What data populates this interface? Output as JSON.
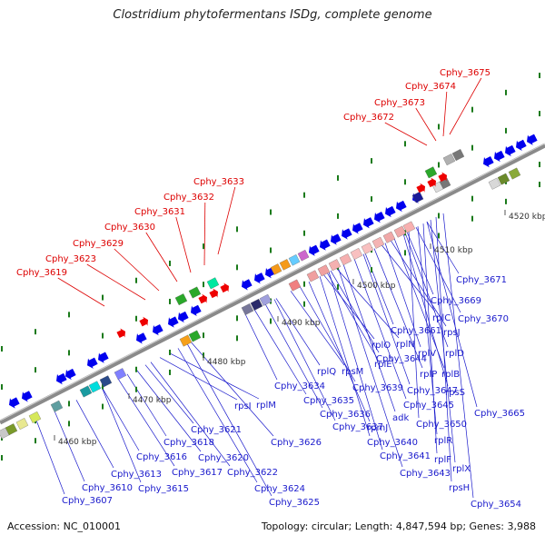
{
  "title": "Clostridium phytofermentans ISDg, complete genome",
  "accession": "Accession: NC_010001",
  "summary": "Topology: circular; Length: 4,847,594 bp; Genes: 3,988",
  "colors": {
    "backbone": "#888888",
    "highlight_label": "#dd0000",
    "gene_label": "#1a1acc",
    "forward_gene": "#0000ee",
    "highlight_gene": "#ee0000",
    "tick": "#1a7a1a",
    "scale_text": "#333333"
  },
  "scale_labels": [
    "4460 kbp",
    "4470 kbp",
    "4480 kbp",
    "4490 kbp",
    "4500 kbp",
    "4510 kbp",
    "4520 kbp"
  ],
  "highlight_labels": [
    "Cphy_3619",
    "Cphy_3623",
    "Cphy_3629",
    "Cphy_3630",
    "Cphy_3631",
    "Cphy_3632",
    "Cphy_3633",
    "Cphy_3672",
    "Cphy_3673",
    "Cphy_3674",
    "Cphy_3675"
  ],
  "gene_labels": [
    "Cphy_3607",
    "Cphy_3610",
    "Cphy_3613",
    "Cphy_3615",
    "Cphy_3616",
    "Cphy_3617",
    "Cphy_3618",
    "Cphy_3620",
    "Cphy_3621",
    "rpsI",
    "rplM",
    "Cphy_3622",
    "Cphy_3624",
    "Cphy_3625",
    "Cphy_3626",
    "Cphy_3634",
    "Cphy_3635",
    "Cphy_3636",
    "Cphy_3637",
    "rplQ",
    "rpsM",
    "Cphy_3639",
    "rpmJ",
    "Cphy_3640",
    "Cphy_3641",
    "Cphy_3643",
    "Cphy_3644",
    "rplE",
    "rplO",
    "adk",
    "rplN",
    "Cphy_3645",
    "Cphy_3647",
    "rplP",
    "Cphy_3661",
    "rplV",
    "rplB",
    "rpsS",
    "rplD",
    "rplC",
    "rpsJ",
    "Cphy_3669",
    "Cphy_3670",
    "Cphy_3671",
    "Cphy_3665",
    "Cphy_3650",
    "rplR",
    "rplF",
    "rplX",
    "rpsH",
    "Cphy_3654"
  ]
}
